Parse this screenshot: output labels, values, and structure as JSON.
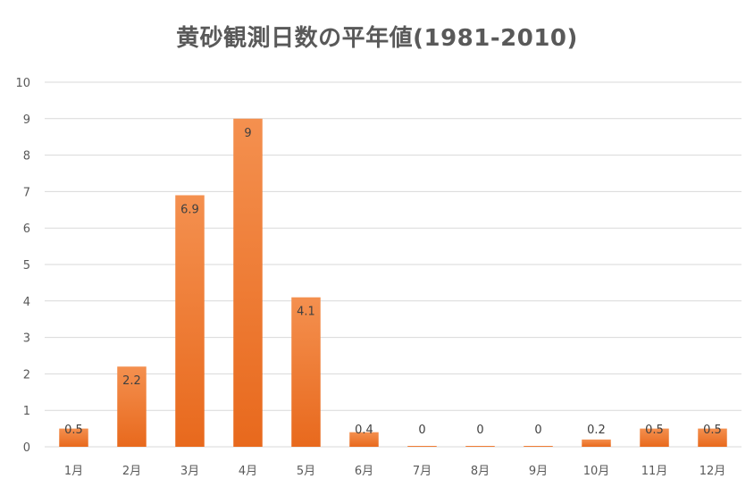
{
  "chart_data": {
    "type": "bar",
    "title": "黄砂観測日数の平年値(1981-2010)",
    "categories": [
      "1月",
      "2月",
      "3月",
      "4月",
      "5月",
      "6月",
      "7月",
      "8月",
      "9月",
      "10月",
      "11月",
      "12月"
    ],
    "values": [
      0.5,
      2.2,
      6.9,
      9,
      4.1,
      0.4,
      0,
      0,
      0,
      0.2,
      0.5,
      0.5
    ],
    "data_labels": [
      "0.5",
      "2.2",
      "6.9",
      "9",
      "4.1",
      "0.4",
      "0",
      "0",
      "0",
      "0.2",
      "0.5",
      "0.5"
    ],
    "ylim": [
      0,
      10
    ],
    "yticks": [
      "0",
      "1",
      "2",
      "3",
      "4",
      "5",
      "6",
      "7",
      "8",
      "9",
      "10"
    ],
    "grid": true,
    "legend": "none",
    "xlabel": "",
    "ylabel": "",
    "colors": {
      "bar_top": "#F4904F",
      "bar_bottom": "#E8691D",
      "grid": "#D9D9D9",
      "text": "#595959"
    }
  }
}
